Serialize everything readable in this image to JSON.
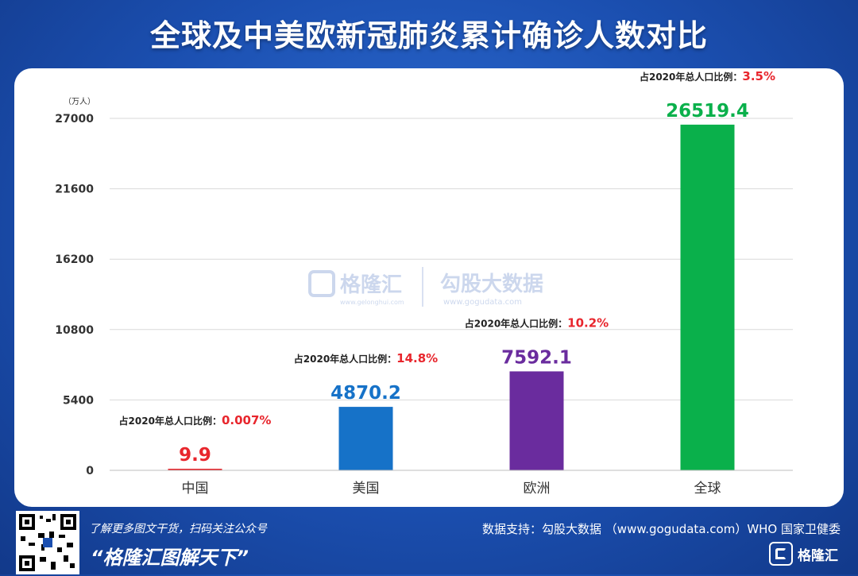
{
  "title": "全球及中美欧新冠肺炎累计确诊人数对比",
  "colors": {
    "china": "#e8262d",
    "usa": "#1672c8",
    "europe": "#6a2c9e",
    "global": "#0ab04b",
    "ratio_red": "#e8262d",
    "axis_text": "#333333"
  },
  "watermark": {
    "brand1": "格隆汇",
    "brand1_url": "www.gelonghui.com",
    "brand2": "勾股大数据",
    "brand2_url": "www.gogudata.com"
  },
  "footer": {
    "line1": "了解更多图文干货，扫码关注公众号",
    "line2": "“格隆汇图解天下”",
    "source": "数据支持：勾股大数据 （www.gogudata.com）WHO 国家卫健委",
    "logo_text": "格隆汇",
    "qr_icon": "qr-code-icon"
  },
  "chart_data": {
    "type": "bar",
    "unit_label": "（万人）",
    "categories": [
      "中国",
      "美国",
      "欧洲",
      "全球"
    ],
    "values": [
      9.9,
      4870.2,
      7592.1,
      26519.4
    ],
    "value_labels": [
      "9.9",
      "4870.2",
      "7592.1",
      "26519.4"
    ],
    "ratio_prefix": "占2020年总人口比例：",
    "ratios": [
      "0.007%",
      "14.8%",
      "10.2%",
      "3.5%"
    ],
    "yticks": [
      0,
      5400,
      10800,
      16200,
      21600,
      27000
    ],
    "ylim": [
      0,
      27000
    ],
    "grid": true,
    "legend": "none"
  }
}
